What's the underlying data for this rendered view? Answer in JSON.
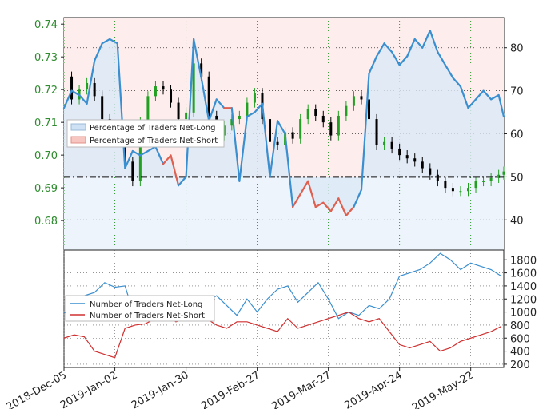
{
  "chart_data": [
    {
      "type": "line",
      "panel": "top",
      "price_axis": {
        "side": "left",
        "ylim": [
          0.671,
          0.742
        ],
        "ticks": [
          "0.74",
          "0.73",
          "0.72",
          "0.71",
          "0.70",
          "0.69",
          "0.68"
        ],
        "tick_values": [
          0.74,
          0.73,
          0.72,
          0.71,
          0.7,
          0.69,
          0.68
        ]
      },
      "pct_axis": {
        "side": "right",
        "ylim": [
          33,
          87
        ],
        "ticks": [
          "80",
          "70",
          "60",
          "50",
          "40"
        ],
        "tick_values": [
          80,
          70,
          60,
          50,
          40
        ]
      },
      "legend": {
        "placement": "left",
        "entries": [
          "Percentage of Traders Net-Long",
          "Percentage of Traders Net-Short"
        ]
      },
      "reference_line": 50,
      "price_series": {
        "name": "",
        "x": [
          0,
          3,
          6,
          9,
          12,
          15,
          18,
          21,
          24,
          27,
          30,
          33,
          36,
          39,
          42,
          45,
          48,
          51,
          54,
          57,
          60,
          63,
          66,
          69,
          72,
          75,
          78,
          81,
          84,
          87,
          90,
          93,
          96,
          99,
          102,
          105,
          108,
          111,
          114,
          117,
          120,
          123,
          126,
          129,
          132,
          135,
          138,
          141,
          144,
          147,
          150,
          153,
          156,
          159,
          162,
          165,
          168,
          171,
          173
        ],
        "values": [
          0.724,
          0.717,
          0.72,
          0.722,
          0.718,
          0.711,
          0.706,
          0.704,
          0.698,
          0.692,
          0.71,
          0.718,
          0.721,
          0.72,
          0.716,
          0.711,
          0.713,
          0.728,
          0.724,
          0.712,
          0.706,
          0.709,
          0.711,
          0.712,
          0.716,
          0.719,
          0.711,
          0.704,
          0.703,
          0.707,
          0.705,
          0.711,
          0.714,
          0.712,
          0.71,
          0.706,
          0.712,
          0.715,
          0.718,
          0.717,
          0.711,
          0.703,
          0.704,
          0.702,
          0.7,
          0.699,
          0.698,
          0.696,
          0.694,
          0.692,
          0.69,
          0.689,
          0.689,
          0.69,
          0.692,
          0.692,
          0.693,
          0.694,
          0.695
        ]
      },
      "pct_series": {
        "x": [
          0,
          3,
          6,
          9,
          12,
          15,
          18,
          21,
          24,
          27,
          30,
          33,
          36,
          39,
          42,
          45,
          48,
          51,
          54,
          57,
          60,
          63,
          66,
          69,
          72,
          75,
          78,
          81,
          84,
          87,
          90,
          93,
          96,
          99,
          102,
          105,
          108,
          111,
          114,
          117,
          120,
          123,
          126,
          129,
          132,
          135,
          138,
          141,
          144,
          147,
          150,
          153,
          156,
          159,
          162,
          165,
          168,
          171,
          173
        ],
        "values": [
          66,
          70,
          69,
          67,
          77,
          81,
          82,
          81,
          52,
          56,
          55,
          56,
          57,
          53,
          55,
          48,
          50,
          82,
          73,
          63,
          68,
          66,
          66,
          49,
          64,
          65,
          67,
          50,
          63,
          60,
          43,
          46,
          49,
          43,
          44,
          42,
          45,
          41,
          43,
          47,
          74,
          78,
          81,
          79,
          76,
          78,
          82,
          80,
          84,
          79,
          76,
          73,
          71,
          66,
          68,
          70,
          68,
          69,
          64
        ],
        "short_segments": [
          [
            39,
            45
          ],
          [
            63,
            66
          ],
          [
            90,
            99
          ],
          [
            102,
            114
          ]
        ]
      }
    },
    {
      "type": "line",
      "panel": "bottom",
      "ylim": [
        150,
        1950
      ],
      "ticks": [
        "1800",
        "1600",
        "1400",
        "1200",
        "1000",
        "800",
        "600",
        "400",
        "200"
      ],
      "tick_values": [
        1800,
        1600,
        1400,
        1200,
        1000,
        800,
        600,
        400,
        200
      ],
      "x_ticks": [
        "2018-Dec-05",
        "2019-Jan-02",
        "2019-Jan-30",
        "2019-Feb-27",
        "2019-Mar-27",
        "2019-Apr-24",
        "2019-May-22"
      ],
      "x_tick_positions": [
        0,
        20,
        48,
        76,
        104,
        132,
        160
      ],
      "legend": {
        "placement": "left",
        "entries": [
          "Number of Traders Net-Long",
          "Number of Traders Net-Short"
        ]
      },
      "series": [
        {
          "name": "Number of Traders Net-Long",
          "color": "#3a8fd0",
          "x": [
            0,
            4,
            8,
            12,
            16,
            20,
            24,
            28,
            32,
            36,
            40,
            44,
            48,
            52,
            56,
            60,
            64,
            68,
            72,
            76,
            80,
            84,
            88,
            92,
            96,
            100,
            104,
            108,
            112,
            116,
            120,
            124,
            128,
            132,
            136,
            140,
            144,
            148,
            152,
            156,
            160,
            164,
            168,
            172
          ],
          "values": [
            1000,
            900,
            1250,
            1300,
            1450,
            1380,
            1400,
            900,
            880,
            930,
            1050,
            1000,
            950,
            900,
            1150,
            1250,
            1100,
            950,
            1200,
            1000,
            1200,
            1350,
            1400,
            1150,
            1300,
            1450,
            1200,
            900,
            1000,
            950,
            1100,
            1050,
            1200,
            1550,
            1600,
            1650,
            1750,
            1900,
            1800,
            1650,
            1750,
            1700,
            1650,
            1550
          ]
        },
        {
          "name": "Number of Traders Net-Short",
          "color": "#d03030",
          "x": [
            0,
            4,
            8,
            12,
            16,
            20,
            24,
            28,
            32,
            36,
            40,
            44,
            48,
            52,
            56,
            60,
            64,
            68,
            72,
            76,
            80,
            84,
            88,
            92,
            96,
            100,
            104,
            108,
            112,
            116,
            120,
            124,
            128,
            132,
            136,
            140,
            144,
            148,
            152,
            156,
            160,
            164,
            168,
            172
          ],
          "values": [
            600,
            650,
            620,
            400,
            350,
            300,
            750,
            800,
            820,
            900,
            950,
            850,
            900,
            950,
            900,
            800,
            750,
            850,
            850,
            800,
            750,
            700,
            900,
            750,
            800,
            850,
            900,
            950,
            1000,
            900,
            850,
            900,
            700,
            500,
            450,
            500,
            550,
            400,
            450,
            550,
            600,
            650,
            700,
            780
          ]
        }
      ]
    }
  ],
  "colors": {
    "price_up": "#22a022",
    "price_down": "#000000",
    "net_long": "#3a8fd0",
    "net_short": "#e06050",
    "long_fill": "#dbe9f6",
    "short_fill": "#fbe0dc",
    "grid": "#1a8f1a",
    "axis_green": "#2e8b2e"
  }
}
